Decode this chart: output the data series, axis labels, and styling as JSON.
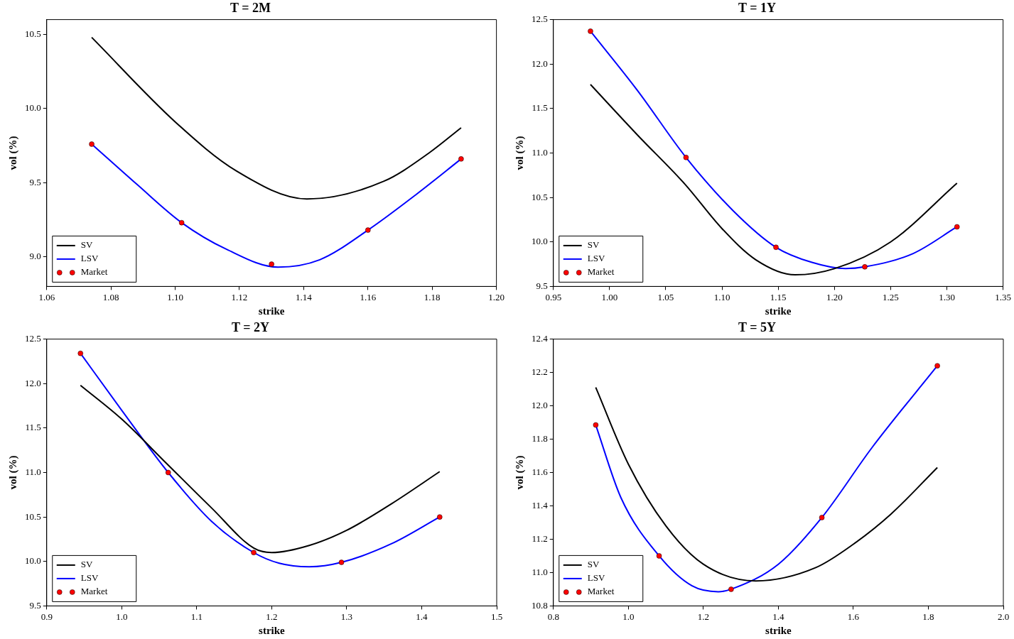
{
  "chart_data": [
    {
      "type": "line",
      "title": "T = 2M",
      "xlabel": "strike",
      "ylabel": "vol (%)",
      "legend": "bottom left",
      "xlim": [
        1.06,
        1.2
      ],
      "xticks": [
        {
          "value": 1.06,
          "label": "1.06"
        },
        {
          "value": 1.08,
          "label": "1.08"
        },
        {
          "value": 1.1,
          "label": "1.10"
        },
        {
          "value": 1.12,
          "label": "1.12"
        },
        {
          "value": 1.14,
          "label": "1.14"
        },
        {
          "value": 1.16,
          "label": "1.16"
        },
        {
          "value": 1.18,
          "label": "1.18"
        },
        {
          "value": 1.2,
          "label": "1.20"
        }
      ],
      "ylim": [
        8.8,
        10.6
      ],
      "yticks": [
        {
          "value": 9,
          "label": "9.0"
        },
        {
          "value": 9.5,
          "label": "9.5"
        },
        {
          "value": 10,
          "label": "10.0"
        },
        {
          "value": 10.5,
          "label": "10.5"
        }
      ],
      "series": [
        {
          "name": "SV",
          "color": "#000000",
          "x": [
            1.074,
            1.1,
            1.119,
            1.141,
            1.165,
            1.179,
            1.189
          ],
          "values": [
            10.48,
            9.91,
            9.58,
            9.39,
            9.51,
            9.7,
            9.87
          ]
        },
        {
          "name": "LSV",
          "color": "#0000ff",
          "x": [
            1.074,
            1.088,
            1.102,
            1.116,
            1.132,
            1.145,
            1.16,
            1.175,
            1.189
          ],
          "values": [
            9.76,
            9.49,
            9.23,
            9.05,
            8.93,
            8.98,
            9.18,
            9.42,
            9.66
          ]
        },
        {
          "name": "Market",
          "type": "scatter",
          "marker": "circle",
          "color": "#ff0000",
          "x": [
            1.074,
            1.102,
            1.13,
            1.16,
            1.189
          ],
          "values": [
            9.76,
            9.23,
            8.95,
            9.18,
            9.66
          ]
        }
      ]
    },
    {
      "type": "line",
      "title": "T = 1Y",
      "xlabel": "strike",
      "ylabel": "vol (%)",
      "legend": "bottom left",
      "xlim": [
        0.95,
        1.35
      ],
      "xticks": [
        {
          "value": 0.95,
          "label": "0.95"
        },
        {
          "value": 1,
          "label": "1.00"
        },
        {
          "value": 1.05,
          "label": "1.05"
        },
        {
          "value": 1.1,
          "label": "1.10"
        },
        {
          "value": 1.15,
          "label": "1.15"
        },
        {
          "value": 1.2,
          "label": "1.20"
        },
        {
          "value": 1.25,
          "label": "1.25"
        },
        {
          "value": 1.3,
          "label": "1.30"
        },
        {
          "value": 1.35,
          "label": "1.35"
        }
      ],
      "ylim": [
        9.5,
        12.5
      ],
      "yticks": [
        9.5,
        {
          "value": 10,
          "label": "10.0"
        },
        10.5,
        {
          "value": 11,
          "label": "11.0"
        },
        11.5,
        {
          "value": 12,
          "label": "12.0"
        },
        12.5
      ],
      "series": [
        {
          "name": "SV",
          "color": "#000000",
          "x": [
            0.983,
            1.025,
            1.067,
            1.1,
            1.13,
            1.165,
            1.2,
            1.25,
            1.309
          ],
          "values": [
            11.77,
            11.2,
            10.65,
            10.15,
            9.8,
            9.63,
            9.7,
            10,
            10.66
          ]
        },
        {
          "name": "LSV",
          "color": "#0000ff",
          "x": [
            0.983,
            1.025,
            1.068,
            1.11,
            1.148,
            1.18,
            1.21,
            1.227,
            1.27,
            1.309
          ],
          "values": [
            12.37,
            11.7,
            10.95,
            10.35,
            9.94,
            9.77,
            9.7,
            9.72,
            9.87,
            10.17
          ]
        },
        {
          "name": "Market",
          "type": "scatter",
          "marker": "circle",
          "color": "#ff0000",
          "x": [
            0.983,
            1.068,
            1.148,
            1.227,
            1.309
          ],
          "values": [
            12.37,
            10.95,
            9.94,
            9.72,
            10.17
          ]
        }
      ]
    },
    {
      "type": "line",
      "title": "T = 2Y",
      "xlabel": "strike",
      "ylabel": "vol (%)",
      "legend": "bottom left",
      "xlim": [
        0.9,
        1.5
      ],
      "xticks": [
        0.9,
        {
          "value": 1,
          "label": "1.0"
        },
        1.1,
        1.2,
        1.3,
        1.4,
        1.5
      ],
      "ylim": [
        9.5,
        12.5
      ],
      "yticks": [
        9.5,
        {
          "value": 10,
          "label": "10.0"
        },
        10.5,
        {
          "value": 11,
          "label": "11.0"
        },
        11.5,
        {
          "value": 12,
          "label": "12.0"
        },
        12.5
      ],
      "series": [
        {
          "name": "SV",
          "color": "#000000",
          "x": [
            0.945,
            1,
            1.06,
            1.12,
            1.176,
            1.2,
            1.25,
            1.3,
            1.36,
            1.424
          ],
          "values": [
            11.98,
            11.6,
            11.1,
            10.6,
            10.15,
            10.1,
            10.18,
            10.35,
            10.65,
            11.01
          ]
        },
        {
          "name": "LSV",
          "color": "#0000ff",
          "x": [
            0.945,
            1,
            1.062,
            1.12,
            1.176,
            1.21,
            1.25,
            1.293,
            1.36,
            1.424
          ],
          "values": [
            12.34,
            11.7,
            11,
            10.45,
            10.1,
            9.98,
            9.94,
            9.99,
            10.2,
            10.5
          ]
        },
        {
          "name": "Market",
          "type": "scatter",
          "marker": "circle",
          "color": "#ff0000",
          "x": [
            0.945,
            1.062,
            1.176,
            1.293,
            1.424
          ],
          "values": [
            12.34,
            11,
            10.1,
            9.99,
            10.5
          ]
        }
      ]
    },
    {
      "type": "line",
      "title": "T = 5Y",
      "xlabel": "strike",
      "ylabel": "vol (%)",
      "legend": "bottom left",
      "xlim": [
        0.8,
        2.0
      ],
      "xticks": [
        0.8,
        {
          "value": 1,
          "label": "1.0"
        },
        1.2,
        1.4,
        1.6,
        1.8,
        {
          "value": 2,
          "label": "2.0"
        }
      ],
      "ylim": [
        10.8,
        12.4
      ],
      "yticks": [
        10.8,
        {
          "value": 11,
          "label": "11.0"
        },
        11.2,
        11.4,
        11.6,
        11.8,
        {
          "value": 12,
          "label": "12.0"
        },
        12.2,
        12.4
      ],
      "series": [
        {
          "name": "SV",
          "color": "#000000",
          "x": [
            0.913,
            1,
            1.1,
            1.2,
            1.34,
            1.5,
            1.6,
            1.7,
            1.824
          ],
          "values": [
            12.11,
            11.65,
            11.28,
            11.05,
            10.95,
            11.03,
            11.17,
            11.35,
            11.63
          ]
        },
        {
          "name": "LSV",
          "color": "#0000ff",
          "x": [
            0.913,
            0.98,
            1.082,
            1.17,
            1.24,
            1.274,
            1.4,
            1.516,
            1.65,
            1.824
          ],
          "values": [
            11.885,
            11.45,
            11.1,
            10.92,
            10.885,
            10.9,
            11.05,
            11.33,
            11.75,
            12.24
          ]
        },
        {
          "name": "Market",
          "type": "scatter",
          "marker": "circle",
          "color": "#ff0000",
          "x": [
            0.913,
            1.082,
            1.274,
            1.516,
            1.824
          ],
          "values": [
            11.885,
            11.1,
            10.9,
            11.33,
            12.24
          ]
        }
      ]
    }
  ]
}
